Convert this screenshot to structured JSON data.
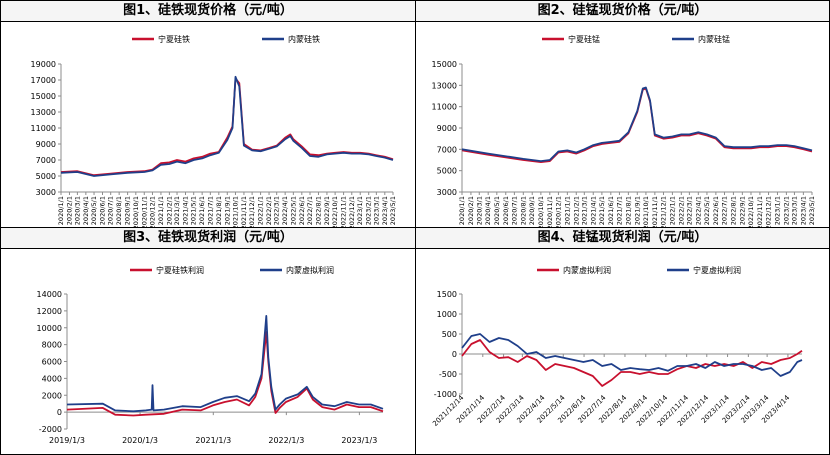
{
  "colors": {
    "red": "#c8102e",
    "blue": "#1f3f8a",
    "axis": "#8c8c8c",
    "grid": "#d9d9d9"
  },
  "chart_data": [
    {
      "type": "line",
      "title": "图1、硅铁现货价格（元/吨）",
      "ylim": [
        3000,
        19000
      ],
      "yticks": [
        3000,
        5000,
        7000,
        9000,
        11000,
        13000,
        15000,
        17000,
        19000
      ],
      "x_tick_labels": [
        "2020/1/1",
        "2020/2/1",
        "2020/3/1",
        "2020/4/1",
        "2020/5/1",
        "2020/6/1",
        "2020/7/1",
        "2020/8/1",
        "2020/9/1",
        "2020/10/1",
        "2020/11/1",
        "2020/12/1",
        "2021/1/1",
        "2021/2/1",
        "2021/3/1",
        "2021/4/1",
        "2021/5/1",
        "2021/6/1",
        "2021/7/1",
        "2021/8/1",
        "2021/9/1",
        "2021/10/1",
        "2021/11/1",
        "2021/12/1",
        "2022/1/1",
        "2022/2/1",
        "2022/3/1",
        "2022/4/1",
        "2022/5/1",
        "2022/6/1",
        "2022/7/1",
        "2022/8/1",
        "2022/9/1",
        "2022/10/1",
        "2022/11/1",
        "2022/12/1",
        "2023/1/1",
        "2023/2/1",
        "2023/3/1",
        "2023/4/1",
        "2023/5/1"
      ],
      "legend_position": "top",
      "series": [
        {
          "name": "宁夏硅铁",
          "color": "red",
          "x": [
            "2020/1/1",
            "2020/3/1",
            "2020/5/1",
            "2020/7/1",
            "2020/9/1",
            "2020/11/1",
            "2020/12/1",
            "2021/1/1",
            "2021/2/1",
            "2021/3/1",
            "2021/4/1",
            "2021/5/1",
            "2021/6/1",
            "2021/7/1",
            "2021/8/1",
            "2021/9/1",
            "2021/9/20",
            "2021/10/1",
            "2021/10/15",
            "2021/11/1",
            "2021/12/1",
            "2022/1/1",
            "2022/2/1",
            "2022/3/1",
            "2022/4/1",
            "2022/4/20",
            "2022/5/1",
            "2022/6/1",
            "2022/7/1",
            "2022/8/1",
            "2022/9/1",
            "2022/10/1",
            "2022/11/1",
            "2022/12/1",
            "2023/1/1",
            "2023/2/1",
            "2023/3/1",
            "2023/4/1",
            "2023/5/1"
          ],
          "y": [
            5500,
            5600,
            5100,
            5300,
            5500,
            5600,
            5800,
            6600,
            6700,
            7000,
            6800,
            7200,
            7400,
            7800,
            8000,
            9800,
            11200,
            17200,
            16600,
            9000,
            8300,
            8200,
            8500,
            8800,
            9800,
            10200,
            9600,
            8700,
            7700,
            7600,
            7800,
            7900,
            8000,
            7900,
            7900,
            7800,
            7600,
            7400,
            7100
          ]
        },
        {
          "name": "内蒙硅铁",
          "color": "blue",
          "x": [
            "2020/1/1",
            "2020/3/1",
            "2020/5/1",
            "2020/7/1",
            "2020/9/1",
            "2020/11/1",
            "2020/12/1",
            "2021/1/1",
            "2021/2/1",
            "2021/3/1",
            "2021/4/1",
            "2021/5/1",
            "2021/6/1",
            "2021/7/1",
            "2021/8/1",
            "2021/9/1",
            "2021/9/20",
            "2021/10/1",
            "2021/10/15",
            "2021/11/1",
            "2021/12/1",
            "2022/1/1",
            "2022/2/1",
            "2022/3/1",
            "2022/4/1",
            "2022/4/20",
            "2022/5/1",
            "2022/6/1",
            "2022/7/1",
            "2022/8/1",
            "2022/9/1",
            "2022/10/1",
            "2022/11/1",
            "2022/12/1",
            "2023/1/1",
            "2023/2/1",
            "2023/3/1",
            "2023/4/1",
            "2023/5/1"
          ],
          "y": [
            5400,
            5500,
            5000,
            5200,
            5400,
            5500,
            5700,
            6400,
            6500,
            6800,
            6600,
            7000,
            7200,
            7600,
            7900,
            9500,
            11000,
            17400,
            16200,
            8800,
            8200,
            8100,
            8400,
            8700,
            9600,
            10000,
            9400,
            8500,
            7500,
            7400,
            7700,
            7800,
            7900,
            7800,
            7800,
            7700,
            7500,
            7300,
            7000
          ]
        }
      ]
    },
    {
      "type": "line",
      "title": "图2、硅锰现货价格（元/吨）",
      "ylim": [
        3000,
        15000
      ],
      "yticks": [
        3000,
        5000,
        7000,
        9000,
        11000,
        13000,
        15000
      ],
      "x_tick_labels": [
        "2020/1/1",
        "2020/2/1",
        "2020/3/1",
        "2020/4/1",
        "2020/5/1",
        "2020/6/1",
        "2020/7/1",
        "2020/8/1",
        "2020/9/1",
        "2020/10/1",
        "2020/11/1",
        "2020/12/1",
        "2021/1/1",
        "2021/2/1",
        "2021/3/1",
        "2021/4/1",
        "2021/5/1",
        "2021/6/1",
        "2021/7/1",
        "2021/8/1",
        "2021/9/1",
        "2021/10/1",
        "2021/11/1",
        "2021/12/1",
        "2022/1/1",
        "2022/2/1",
        "2022/3/1",
        "2022/4/1",
        "2022/5/1",
        "2022/6/1",
        "2022/7/1",
        "2022/8/1",
        "2022/9/1",
        "2022/10/1",
        "2022/11/1",
        "2022/12/1",
        "2023/1/1",
        "2023/2/1",
        "2023/3/1",
        "2023/4/1",
        "2023/5/1"
      ],
      "legend_position": "top",
      "series": [
        {
          "name": "宁夏硅锰",
          "color": "red",
          "x": [
            "2020/1/1",
            "2020/4/1",
            "2020/8/1",
            "2020/10/1",
            "2020/11/1",
            "2020/12/1",
            "2021/1/1",
            "2021/2/1",
            "2021/3/1",
            "2021/4/1",
            "2021/5/1",
            "2021/6/1",
            "2021/7/1",
            "2021/8/1",
            "2021/9/1",
            "2021/9/20",
            "2021/10/1",
            "2021/10/15",
            "2021/11/1",
            "2021/12/1",
            "2022/1/1",
            "2022/2/1",
            "2022/3/1",
            "2022/4/1",
            "2022/5/1",
            "2022/6/1",
            "2022/7/1",
            "2022/8/1",
            "2022/9/1",
            "2022/10/1",
            "2022/11/1",
            "2022/12/1",
            "2023/1/1",
            "2023/2/1",
            "2023/3/1",
            "2023/4/1",
            "2023/5/1"
          ],
          "y": [
            6900,
            6500,
            6000,
            5800,
            5900,
            6700,
            6800,
            6600,
            6900,
            7300,
            7500,
            7600,
            7700,
            8500,
            10500,
            12600,
            12700,
            11500,
            8300,
            8000,
            8100,
            8300,
            8300,
            8500,
            8300,
            8000,
            7200,
            7100,
            7100,
            7100,
            7200,
            7200,
            7300,
            7300,
            7200,
            7000,
            6800
          ]
        },
        {
          "name": "内蒙硅锰",
          "color": "blue",
          "x": [
            "2020/1/1",
            "2020/4/1",
            "2020/8/1",
            "2020/10/1",
            "2020/11/1",
            "2020/12/1",
            "2021/1/1",
            "2021/2/1",
            "2021/3/1",
            "2021/4/1",
            "2021/5/1",
            "2021/6/1",
            "2021/7/1",
            "2021/8/1",
            "2021/9/1",
            "2021/9/20",
            "2021/10/1",
            "2021/10/15",
            "2021/11/1",
            "2021/12/1",
            "2022/1/1",
            "2022/2/1",
            "2022/3/1",
            "2022/4/1",
            "2022/5/1",
            "2022/6/1",
            "2022/7/1",
            "2022/8/1",
            "2022/9/1",
            "2022/10/1",
            "2022/11/1",
            "2022/12/1",
            "2023/1/1",
            "2023/2/1",
            "2023/3/1",
            "2023/4/1",
            "2023/5/1"
          ],
          "y": [
            7000,
            6600,
            6100,
            5900,
            6000,
            6800,
            6900,
            6700,
            7000,
            7400,
            7600,
            7700,
            7800,
            8600,
            10600,
            12700,
            12800,
            11600,
            8400,
            8100,
            8200,
            8400,
            8400,
            8600,
            8400,
            8100,
            7300,
            7200,
            7200,
            7200,
            7300,
            7300,
            7400,
            7400,
            7300,
            7100,
            6900
          ]
        }
      ]
    },
    {
      "type": "line",
      "title": "图3、硅铁现货利润（元/吨）",
      "ylim": [
        -2000,
        14000
      ],
      "yticks": [
        -2000,
        0,
        2000,
        4000,
        6000,
        8000,
        10000,
        12000,
        14000
      ],
      "x_tick_labels": [
        "2019/1/3",
        "2020/1/3",
        "2021/1/3",
        "2022/1/3",
        "2023/1/3"
      ],
      "legend_position": "top",
      "series": [
        {
          "name": "宁夏硅铁利润",
          "color": "red",
          "x": [
            "2019/1/3",
            "2019/7/1",
            "2019/9/1",
            "2019/12/1",
            "2020/2/1",
            "2020/5/1",
            "2020/8/1",
            "2020/11/1",
            "2021/1/1",
            "2021/3/1",
            "2021/5/1",
            "2021/7/1",
            "2021/8/1",
            "2021/9/1",
            "2021/9/25",
            "2021/10/5",
            "2021/10/20",
            "2021/11/10",
            "2021/12/1",
            "2022/1/1",
            "2022/3/1",
            "2022/4/15",
            "2022/5/15",
            "2022/7/1",
            "2022/9/1",
            "2022/11/1",
            "2023/1/1",
            "2023/3/1",
            "2023/5/1"
          ],
          "y": [
            300,
            500,
            -300,
            -400,
            -300,
            -200,
            300,
            200,
            800,
            1200,
            1500,
            800,
            1800,
            4000,
            9500,
            6000,
            2500,
            -100,
            500,
            1200,
            1800,
            2800,
            1500,
            600,
            300,
            900,
            600,
            600,
            100
          ]
        },
        {
          "name": "内蒙虚拟利润",
          "color": "blue",
          "x": [
            "2019/1/3",
            "2019/7/1",
            "2019/9/1",
            "2019/12/1",
            "2020/2/1",
            "2020/3/1",
            "2020/3/5",
            "2020/3/10",
            "2020/5/1",
            "2020/8/1",
            "2020/11/1",
            "2021/1/1",
            "2021/3/1",
            "2021/5/1",
            "2021/7/1",
            "2021/8/1",
            "2021/9/1",
            "2021/9/25",
            "2021/10/5",
            "2021/10/20",
            "2021/11/10",
            "2021/12/1",
            "2022/1/1",
            "2022/3/1",
            "2022/4/15",
            "2022/5/15",
            "2022/7/1",
            "2022/9/1",
            "2022/11/1",
            "2023/1/1",
            "2023/3/1",
            "2023/5/1"
          ],
          "y": [
            900,
            1000,
            200,
            100,
            200,
            300,
            3200,
            200,
            300,
            700,
            600,
            1200,
            1700,
            1900,
            1300,
            2200,
            4500,
            11400,
            6500,
            3000,
            300,
            900,
            1600,
            2100,
            3000,
            1800,
            900,
            700,
            1200,
            900,
            900,
            400
          ]
        }
      ]
    },
    {
      "type": "line",
      "title": "图4、硅锰现货利润（元/吨）",
      "ylim": [
        -1000,
        1500
      ],
      "yticks": [
        -1000,
        -500,
        0,
        500,
        1000,
        1500
      ],
      "x_tick_labels": [
        "2021/12/14",
        "2022/1/14",
        "2022/2/14",
        "2022/3/14",
        "2022/4/14",
        "2022/5/14",
        "2022/6/14",
        "2022/7/14",
        "2022/8/14",
        "2022/9/14",
        "2022/10/14",
        "2022/11/14",
        "2022/12/14",
        "2023/1/14",
        "2023/2/14",
        "2023/3/14",
        "2023/4/14"
      ],
      "legend_position": "top",
      "series": [
        {
          "name": "内蒙虚拟利润",
          "color": "red",
          "x": [
            "2021/12/14",
            "2021/12/28",
            "2022/1/10",
            "2022/1/24",
            "2022/2/7",
            "2022/2/21",
            "2022/3/7",
            "2022/3/21",
            "2022/4/4",
            "2022/4/18",
            "2022/5/2",
            "2022/5/16",
            "2022/5/30",
            "2022/6/13",
            "2022/6/27",
            "2022/7/11",
            "2022/7/25",
            "2022/8/8",
            "2022/8/22",
            "2022/9/5",
            "2022/9/19",
            "2022/10/3",
            "2022/10/17",
            "2022/10/31",
            "2022/11/14",
            "2022/11/28",
            "2022/12/12",
            "2022/12/26",
            "2023/1/9",
            "2023/1/23",
            "2023/2/6",
            "2023/2/20",
            "2023/3/6",
            "2023/3/20",
            "2023/4/3",
            "2023/4/17",
            "2023/4/28",
            "2023/5/5"
          ],
          "y": [
            -50,
            250,
            350,
            50,
            -100,
            -80,
            -200,
            -50,
            -150,
            -400,
            -250,
            -300,
            -350,
            -450,
            -550,
            -800,
            -650,
            -450,
            -450,
            -500,
            -450,
            -500,
            -500,
            -380,
            -300,
            -350,
            -250,
            -300,
            -250,
            -300,
            -200,
            -350,
            -200,
            -250,
            -150,
            -100,
            0,
            80
          ]
        },
        {
          "name": "宁夏虚拟利润",
          "color": "blue",
          "x": [
            "2021/12/14",
            "2021/12/28",
            "2022/1/10",
            "2022/1/24",
            "2022/2/7",
            "2022/2/21",
            "2022/3/7",
            "2022/3/21",
            "2022/4/4",
            "2022/4/18",
            "2022/5/2",
            "2022/5/16",
            "2022/5/30",
            "2022/6/13",
            "2022/6/27",
            "2022/7/11",
            "2022/7/25",
            "2022/8/8",
            "2022/8/22",
            "2022/9/5",
            "2022/9/19",
            "2022/10/3",
            "2022/10/17",
            "2022/10/31",
            "2022/11/14",
            "2022/11/28",
            "2022/12/12",
            "2022/12/26",
            "2023/1/9",
            "2023/1/23",
            "2023/2/6",
            "2023/2/20",
            "2023/3/6",
            "2023/3/20",
            "2023/4/3",
            "2023/4/17",
            "2023/4/28",
            "2023/5/5"
          ],
          "y": [
            150,
            450,
            500,
            300,
            400,
            350,
            200,
            0,
            50,
            -100,
            -50,
            -100,
            -150,
            -200,
            -150,
            -300,
            -250,
            -400,
            -350,
            -380,
            -400,
            -350,
            -420,
            -300,
            -300,
            -250,
            -350,
            -200,
            -300,
            -250,
            -250,
            -300,
            -400,
            -350,
            -550,
            -450,
            -200,
            -150
          ]
        }
      ]
    }
  ]
}
